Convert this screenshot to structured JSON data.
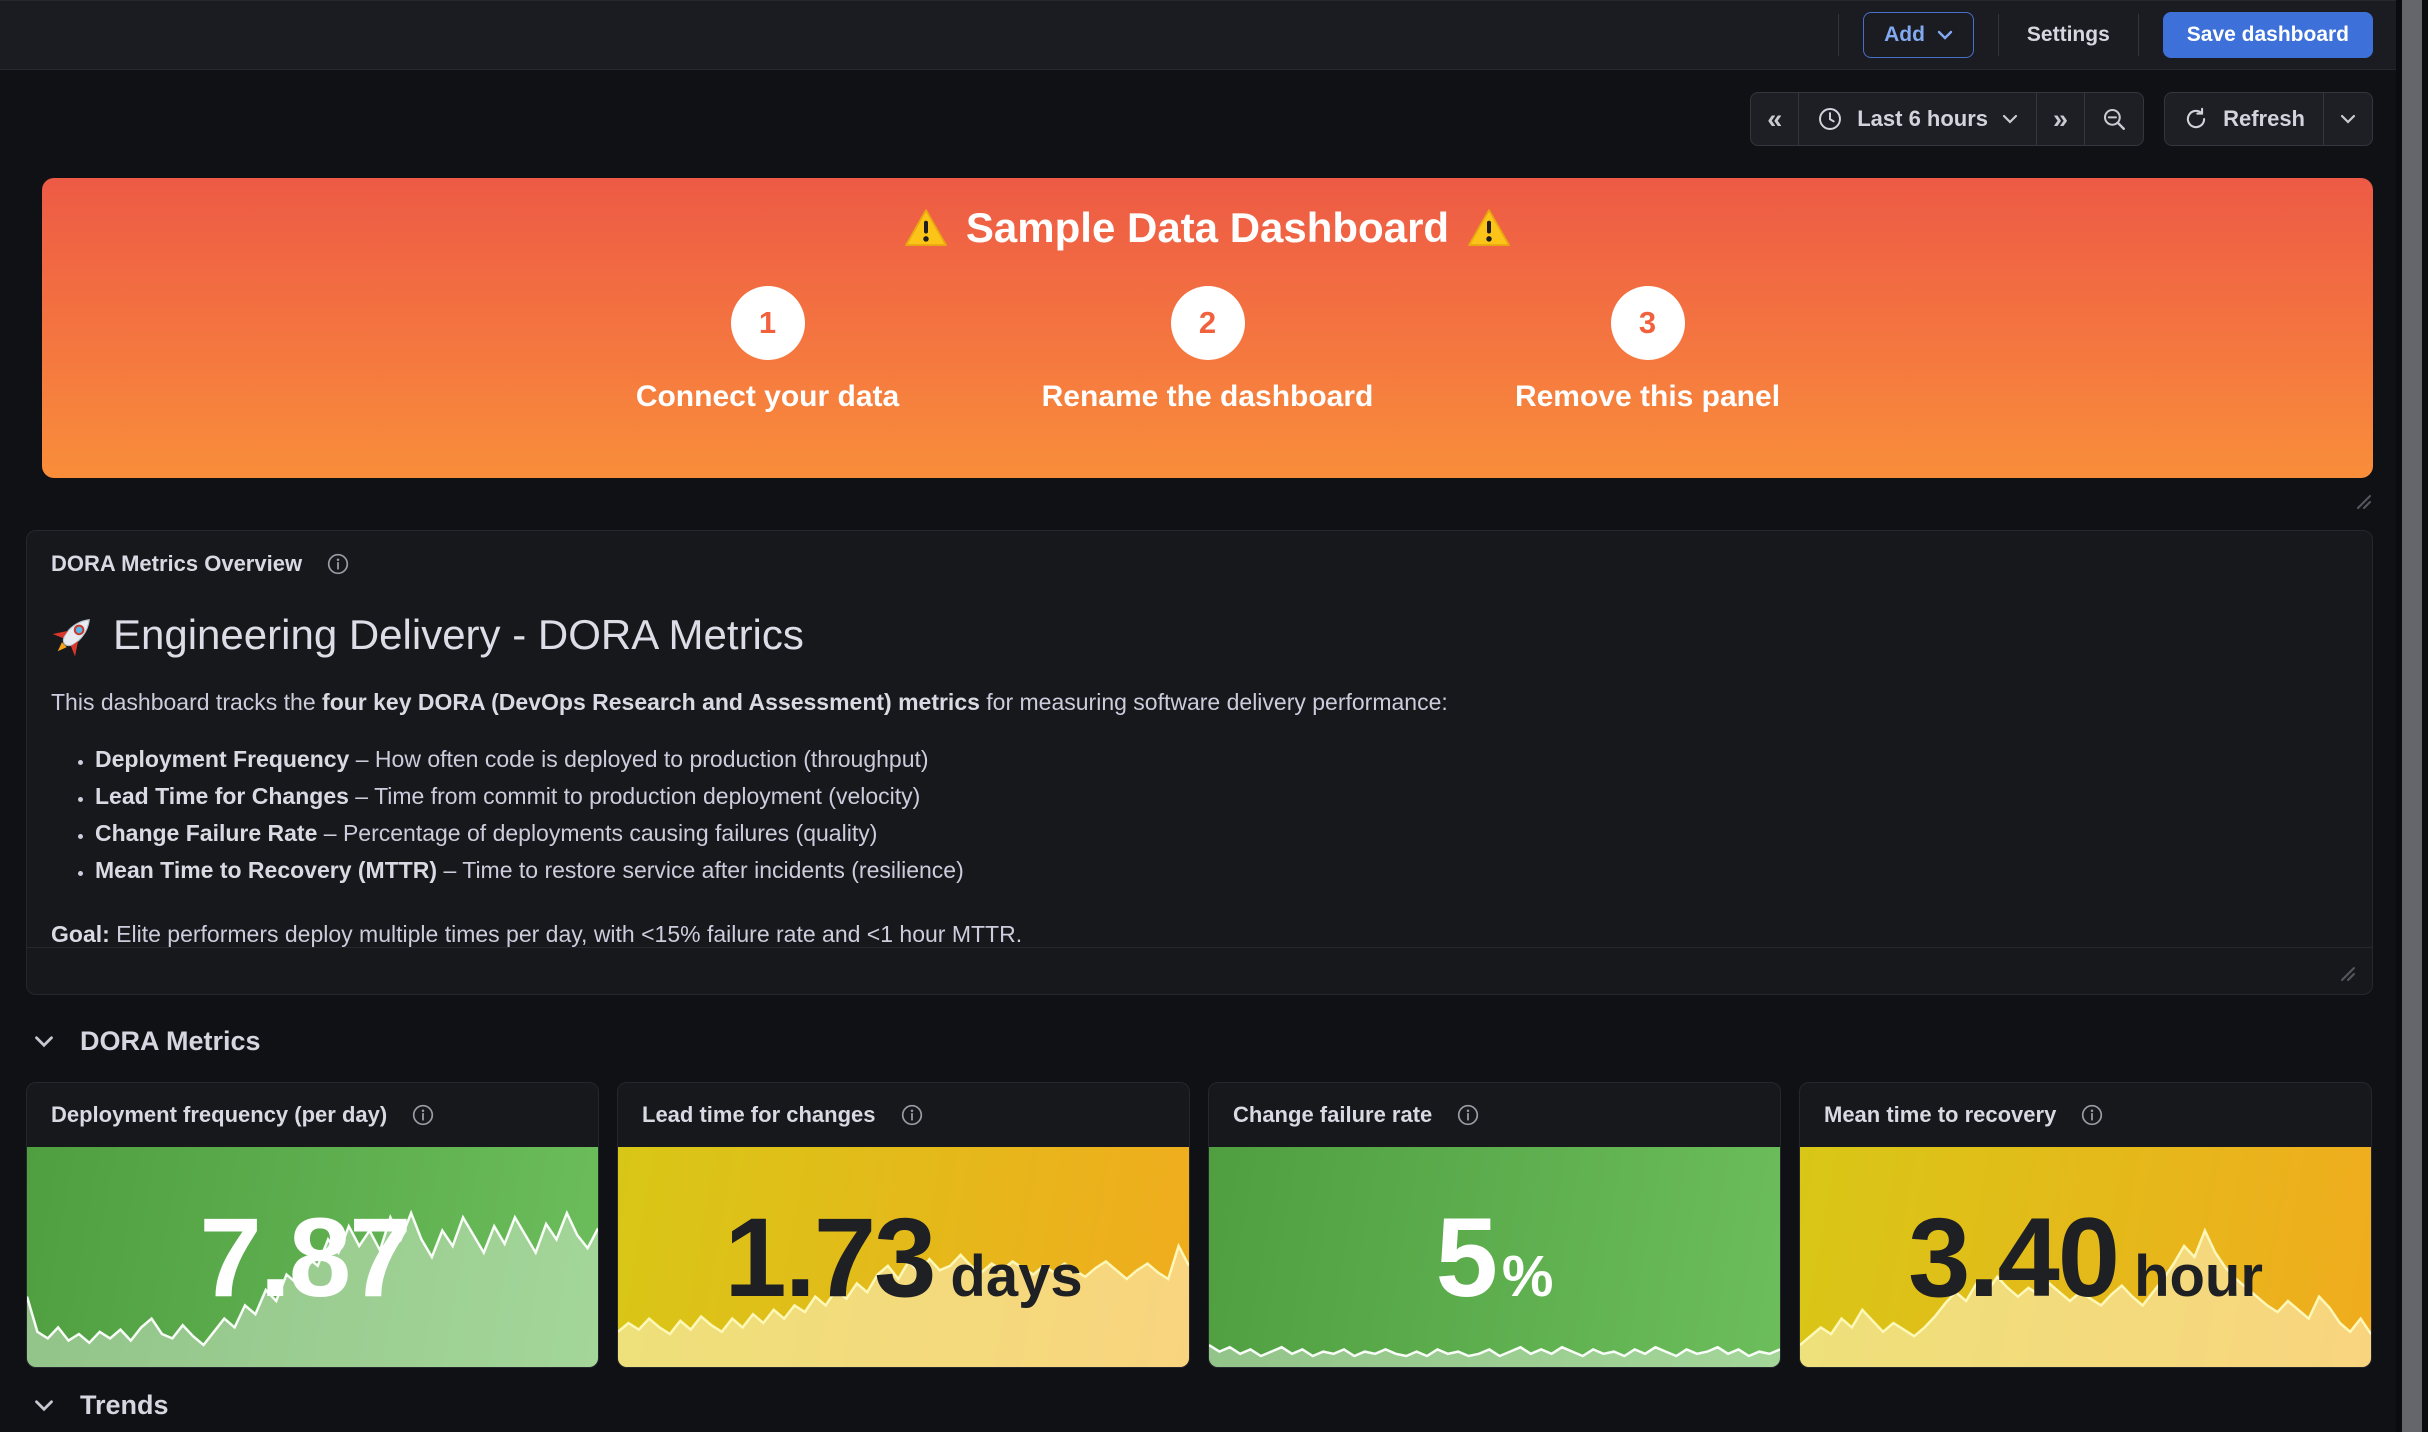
{
  "toolbar": {
    "add_label": "Add",
    "settings_label": "Settings",
    "save_label": "Save dashboard"
  },
  "timebar": {
    "range_label": "Last 6 hours",
    "refresh_label": "Refresh",
    "back_glyph": "«",
    "forward_glyph": "»"
  },
  "banner": {
    "title": "Sample Data Dashboard",
    "steps": [
      {
        "number": "1",
        "label": "Connect your data"
      },
      {
        "number": "2",
        "label": "Rename the dashboard"
      },
      {
        "number": "3",
        "label": "Remove this panel"
      }
    ]
  },
  "overview": {
    "panel_title": "DORA Metrics Overview",
    "heading": "Engineering Delivery - DORA Metrics",
    "intro_prefix": "This dashboard tracks the ",
    "intro_bold": "four key DORA (DevOps Research and Assessment) metrics",
    "intro_suffix": " for measuring software delivery performance:",
    "bullets": [
      {
        "term": "Deployment Frequency",
        "desc": " – How often code is deployed to production (throughput)"
      },
      {
        "term": "Lead Time for Changes",
        "desc": " – Time from commit to production deployment (velocity)"
      },
      {
        "term": "Change Failure Rate",
        "desc": " – Percentage of deployments causing failures (quality)"
      },
      {
        "term": "Mean Time to Recovery (MTTR)",
        "desc": " – Time to restore service after incidents (resilience)"
      }
    ],
    "goal_label": "Goal:",
    "goal_text": " Elite performers deploy multiple times per day, with <15% failure rate and <1 hour MTTR."
  },
  "sections": {
    "dora": "DORA Metrics",
    "trends": "Trends"
  },
  "stats": [
    {
      "title": "Deployment frequency (per day)",
      "value": "7.87",
      "unit": "",
      "theme": "green",
      "spark": [
        0.32,
        0.16,
        0.13,
        0.18,
        0.12,
        0.15,
        0.11,
        0.16,
        0.13,
        0.17,
        0.12,
        0.18,
        0.22,
        0.15,
        0.13,
        0.19,
        0.14,
        0.1,
        0.16,
        0.22,
        0.18,
        0.28,
        0.24,
        0.35,
        0.3,
        0.42,
        0.38,
        0.5,
        0.46,
        0.58,
        0.52,
        0.64,
        0.55,
        0.62,
        0.53,
        0.68,
        0.58,
        0.7,
        0.58,
        0.5,
        0.62,
        0.55,
        0.68,
        0.6,
        0.52,
        0.64,
        0.56,
        0.68,
        0.6,
        0.52,
        0.65,
        0.58,
        0.7,
        0.6,
        0.54,
        0.63
      ]
    },
    {
      "title": "Lead time for changes",
      "value": "1.73",
      "unit": "days",
      "theme": "yellow",
      "spark": [
        0.16,
        0.2,
        0.17,
        0.22,
        0.18,
        0.15,
        0.21,
        0.17,
        0.23,
        0.19,
        0.16,
        0.22,
        0.18,
        0.24,
        0.2,
        0.26,
        0.22,
        0.28,
        0.25,
        0.32,
        0.28,
        0.35,
        0.31,
        0.38,
        0.34,
        0.42,
        0.46,
        0.4,
        0.48,
        0.43,
        0.49,
        0.44,
        0.46,
        0.51,
        0.46,
        0.43,
        0.47,
        0.44,
        0.48,
        0.45,
        0.42,
        0.46,
        0.43,
        0.47,
        0.44,
        0.41,
        0.45,
        0.48,
        0.44,
        0.4,
        0.44,
        0.47,
        0.43,
        0.4,
        0.55,
        0.46
      ]
    },
    {
      "title": "Change failure rate",
      "value": "5",
      "unit": "%",
      "theme": "green",
      "spark": [
        0.1,
        0.07,
        0.09,
        0.06,
        0.08,
        0.05,
        0.07,
        0.09,
        0.06,
        0.08,
        0.05,
        0.07,
        0.06,
        0.08,
        0.05,
        0.07,
        0.06,
        0.08,
        0.06,
        0.05,
        0.07,
        0.05,
        0.08,
        0.06,
        0.07,
        0.05,
        0.06,
        0.08,
        0.05,
        0.07,
        0.09,
        0.06,
        0.08,
        0.06,
        0.09,
        0.07,
        0.05,
        0.08,
        0.06,
        0.07,
        0.05,
        0.08,
        0.06,
        0.09,
        0.07,
        0.05,
        0.08,
        0.06,
        0.07,
        0.09,
        0.06,
        0.08,
        0.05,
        0.07,
        0.06,
        0.08
      ]
    },
    {
      "title": "Mean time to recovery",
      "value": "3.40",
      "unit": "hour",
      "theme": "yellow",
      "spark": [
        0.1,
        0.14,
        0.18,
        0.15,
        0.22,
        0.18,
        0.26,
        0.21,
        0.16,
        0.2,
        0.17,
        0.14,
        0.18,
        0.23,
        0.29,
        0.34,
        0.3,
        0.38,
        0.34,
        0.41,
        0.36,
        0.32,
        0.36,
        0.33,
        0.38,
        0.34,
        0.3,
        0.34,
        0.31,
        0.28,
        0.33,
        0.37,
        0.32,
        0.28,
        0.34,
        0.4,
        0.47,
        0.55,
        0.5,
        0.62,
        0.52,
        0.45,
        0.4,
        0.36,
        0.32,
        0.28,
        0.25,
        0.3,
        0.26,
        0.22,
        0.32,
        0.27,
        0.2,
        0.16,
        0.22,
        0.15
      ]
    }
  ],
  "colors": {
    "page_bg": "#0f1115",
    "toolbar_bg": "#1a1c21",
    "panel_bg": "#16181c",
    "panel_border": "#26272e",
    "accent_blue": "#3d71d9",
    "banner_top": "#ed5a45",
    "banner_bottom": "#f98e3a",
    "stat_green_start": "#4f9f41",
    "stat_green_end": "#6cbd5b",
    "stat_yellow_start": "#d8c716",
    "stat_yellow_end": "#f0ac1e",
    "text_primary": "#ccccdc"
  }
}
